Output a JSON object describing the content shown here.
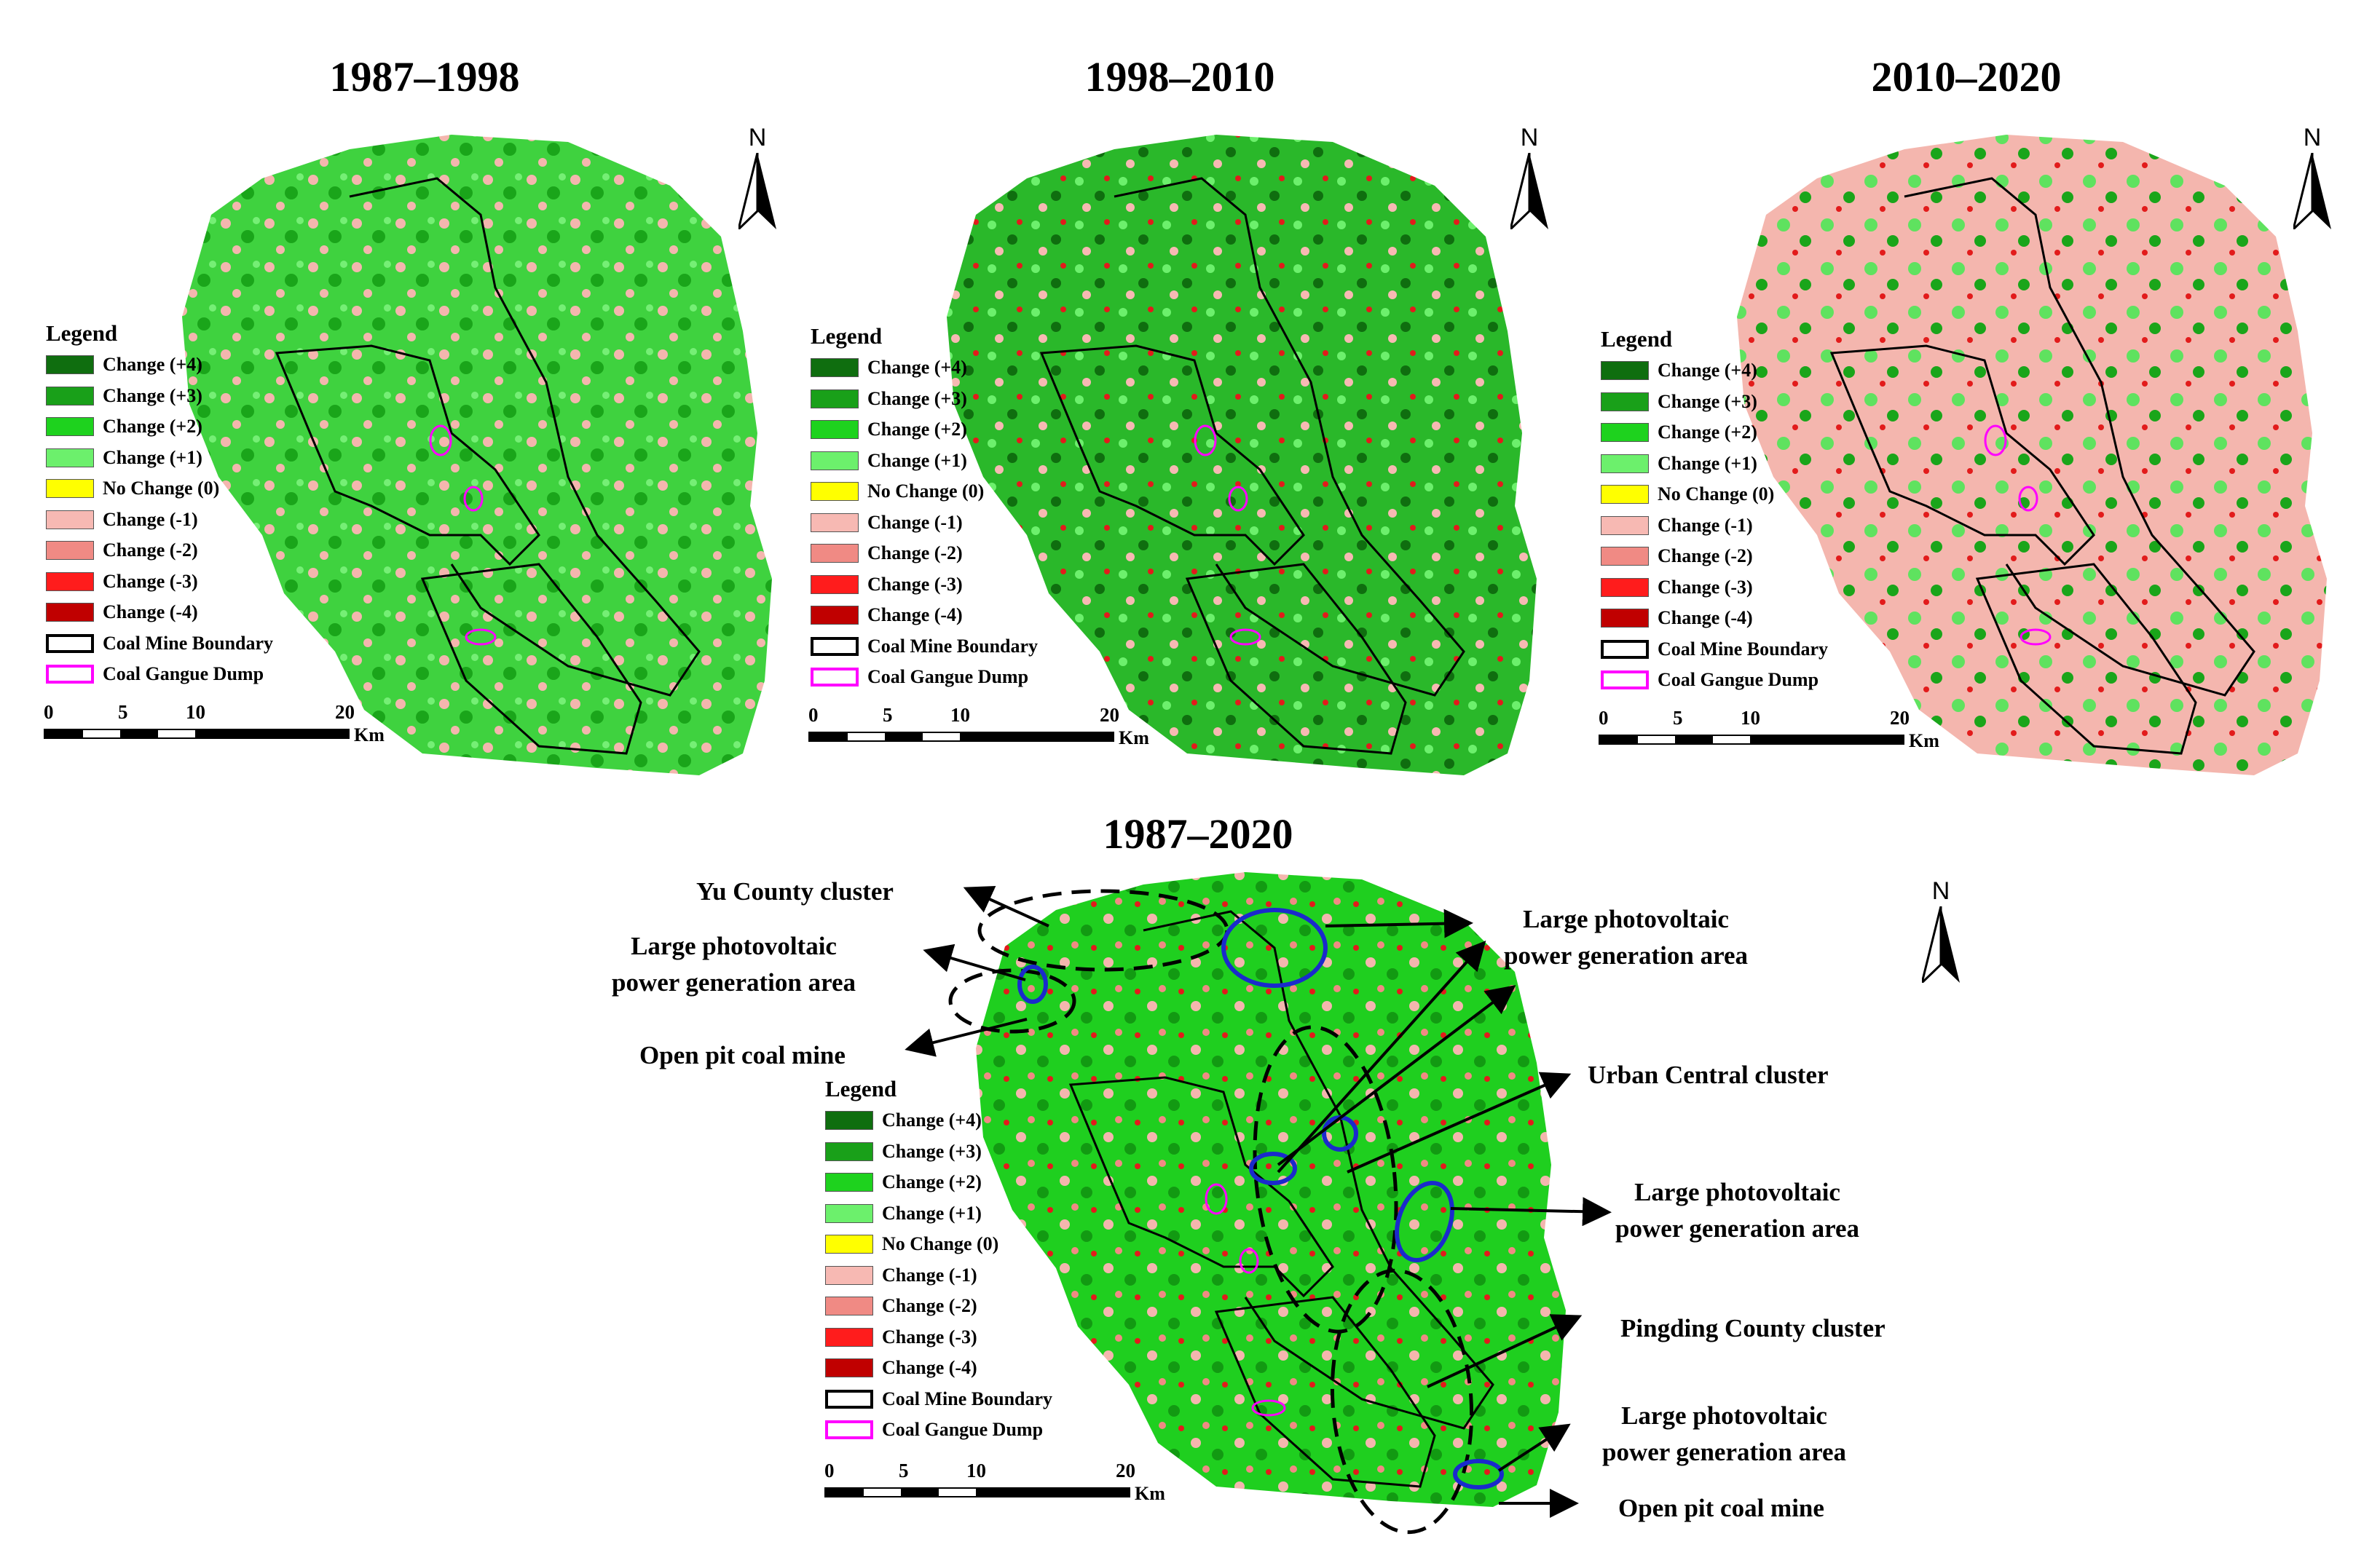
{
  "panels": [
    {
      "title": "1987–1998"
    },
    {
      "title": "1998–2010"
    },
    {
      "title": "2010–2020"
    },
    {
      "title": "1987–2020"
    }
  ],
  "north_label": "N",
  "legend": {
    "title": "Legend",
    "items": [
      {
        "label": "Change (+4)",
        "color": "#0f6e0f"
      },
      {
        "label": "Change (+3)",
        "color": "#19a019"
      },
      {
        "label": "Change (+2)",
        "color": "#1ed21e"
      },
      {
        "label": "Change (+1)",
        "color": "#6cf06c"
      },
      {
        "label": "No Change (0)",
        "color": "#ffff00"
      },
      {
        "label": "Change (-1)",
        "color": "#f7b9b3"
      },
      {
        "label": "Change (-2)",
        "color": "#f08a84"
      },
      {
        "label": "Change (-3)",
        "color": "#ff1c1c"
      },
      {
        "label": "Change (-4)",
        "color": "#c00000"
      },
      {
        "label": "Coal Mine Boundary",
        "color": "#000000"
      },
      {
        "label": "Coal Gangue Dump",
        "color": "#ff00ff"
      }
    ]
  },
  "scale": {
    "ticks": [
      "0",
      "5",
      "10",
      "20"
    ],
    "unit": "Km"
  },
  "annotations": {
    "yu_county": "Yu County cluster",
    "pv_top_left": [
      "Large photovoltaic",
      "power generation area"
    ],
    "open_pit_left": "Open pit coal mine",
    "pv_top_right": [
      "Large photovoltaic",
      "power generation area"
    ],
    "urban_central": "Urban Central cluster",
    "pv_mid_right": [
      "Large photovoltaic",
      "power generation area"
    ],
    "pingding": "Pingding County cluster",
    "pv_bottom_right": [
      "Large photovoltaic",
      "power generation area"
    ],
    "open_pit_bottom": "Open pit coal mine"
  },
  "colors": {
    "land_green": "#33cc33",
    "land_pink": "#f4b6ae",
    "ellipse_blue": "#1a2acc",
    "cluster_dash": "#000000"
  }
}
